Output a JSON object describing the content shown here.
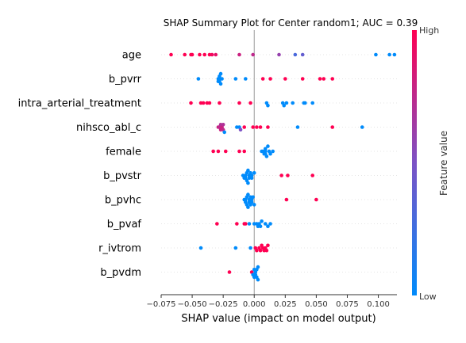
{
  "chart_data": {
    "type": "scatter",
    "subtype": "shap-beeswarm",
    "title": "SHAP Summary Plot for Center random1; AUC = 0.39",
    "xlabel": "SHAP value (impact on model output)",
    "ylabel": "",
    "xlim": [
      -0.075,
      0.115
    ],
    "xticks": [
      -0.075,
      -0.05,
      -0.025,
      0.0,
      0.025,
      0.05,
      0.075,
      0.1
    ],
    "xtick_labels": [
      "−0.075",
      "−0.050",
      "−0.025",
      "0.000",
      "0.025",
      "0.050",
      "0.075",
      "0.100"
    ],
    "grid": false,
    "zero_line": true,
    "colorbar": {
      "label": "Feature value",
      "high_label": "High",
      "low_label": "Low",
      "low_color": "#008bfb",
      "high_color": "#ff0052"
    },
    "series": [
      {
        "feature": "age",
        "points": [
          {
            "x": -0.067,
            "v": 1.0
          },
          {
            "x": -0.056,
            "v": 1.0
          },
          {
            "x": -0.051,
            "v": 1.0
          },
          {
            "x": -0.05,
            "v": 1.0
          },
          {
            "x": -0.044,
            "v": 1.0
          },
          {
            "x": -0.04,
            "v": 1.0
          },
          {
            "x": -0.036,
            "v": 1.0
          },
          {
            "x": -0.034,
            "v": 0.95
          },
          {
            "x": -0.031,
            "v": 0.9
          },
          {
            "x": -0.012,
            "v": 0.8
          },
          {
            "x": -0.001,
            "v": 0.75
          },
          {
            "x": 0.02,
            "v": 0.6
          },
          {
            "x": 0.033,
            "v": 0.3
          },
          {
            "x": 0.039,
            "v": 0.4
          },
          {
            "x": 0.098,
            "v": 0.0
          },
          {
            "x": 0.109,
            "v": 0.0
          },
          {
            "x": 0.113,
            "v": 0.0
          }
        ]
      },
      {
        "feature": "b_pvrr",
        "points": [
          {
            "x": -0.045,
            "v": 0.0
          },
          {
            "x": -0.029,
            "v": 0.0
          },
          {
            "x": -0.029,
            "v": 0.0
          },
          {
            "x": -0.028,
            "v": 0.0
          },
          {
            "x": -0.028,
            "v": 0.0
          },
          {
            "x": -0.028,
            "v": 0.0
          },
          {
            "x": -0.027,
            "v": 0.0
          },
          {
            "x": -0.027,
            "v": 0.0
          },
          {
            "x": -0.026,
            "v": 0.0
          },
          {
            "x": -0.015,
            "v": 0.0
          },
          {
            "x": -0.007,
            "v": 0.0
          },
          {
            "x": 0.007,
            "v": 1.0
          },
          {
            "x": 0.013,
            "v": 1.0
          },
          {
            "x": 0.025,
            "v": 1.0
          },
          {
            "x": 0.039,
            "v": 1.0
          },
          {
            "x": 0.053,
            "v": 1.0
          },
          {
            "x": 0.056,
            "v": 1.0
          },
          {
            "x": 0.063,
            "v": 1.0
          }
        ]
      },
      {
        "feature": "intra_arterial_treatment",
        "points": [
          {
            "x": -0.051,
            "v": 1.0
          },
          {
            "x": -0.043,
            "v": 1.0
          },
          {
            "x": -0.041,
            "v": 1.0
          },
          {
            "x": -0.038,
            "v": 1.0
          },
          {
            "x": -0.036,
            "v": 1.0
          },
          {
            "x": -0.028,
            "v": 1.0
          },
          {
            "x": -0.012,
            "v": 1.0
          },
          {
            "x": -0.003,
            "v": 1.0
          },
          {
            "x": 0.01,
            "v": 0.0
          },
          {
            "x": 0.011,
            "v": 0.0
          },
          {
            "x": 0.023,
            "v": 0.0
          },
          {
            "x": 0.024,
            "v": 0.0
          },
          {
            "x": 0.026,
            "v": 0.0
          },
          {
            "x": 0.031,
            "v": 0.0
          },
          {
            "x": 0.04,
            "v": 0.0
          },
          {
            "x": 0.041,
            "v": 0.0
          },
          {
            "x": 0.047,
            "v": 0.0
          }
        ]
      },
      {
        "feature": "nihsco_abl_c",
        "points": [
          {
            "x": -0.029,
            "v": 0.8
          },
          {
            "x": -0.028,
            "v": 0.75
          },
          {
            "x": -0.027,
            "v": 0.8
          },
          {
            "x": -0.027,
            "v": 0.7
          },
          {
            "x": -0.026,
            "v": 0.8
          },
          {
            "x": -0.025,
            "v": 0.75
          },
          {
            "x": -0.025,
            "v": 0.7
          },
          {
            "x": -0.024,
            "v": 0.0
          },
          {
            "x": -0.014,
            "v": 0.0
          },
          {
            "x": -0.012,
            "v": 0.0
          },
          {
            "x": -0.011,
            "v": 0.5
          },
          {
            "x": -0.008,
            "v": 1.0
          },
          {
            "x": -0.001,
            "v": 1.0
          },
          {
            "x": 0.002,
            "v": 1.0
          },
          {
            "x": 0.005,
            "v": 1.0
          },
          {
            "x": 0.011,
            "v": 1.0
          },
          {
            "x": 0.035,
            "v": 0.0
          },
          {
            "x": 0.063,
            "v": 1.0
          },
          {
            "x": 0.087,
            "v": 0.0
          }
        ]
      },
      {
        "feature": "female",
        "points": [
          {
            "x": -0.033,
            "v": 1.0
          },
          {
            "x": -0.029,
            "v": 1.0
          },
          {
            "x": -0.023,
            "v": 1.0
          },
          {
            "x": -0.012,
            "v": 1.0
          },
          {
            "x": -0.008,
            "v": 1.0
          },
          {
            "x": 0.006,
            "v": 0.0
          },
          {
            "x": 0.007,
            "v": 0.0
          },
          {
            "x": 0.008,
            "v": 0.0
          },
          {
            "x": 0.009,
            "v": 0.0
          },
          {
            "x": 0.009,
            "v": 0.0
          },
          {
            "x": 0.009,
            "v": 0.0
          },
          {
            "x": 0.01,
            "v": 0.0
          },
          {
            "x": 0.011,
            "v": 0.0
          },
          {
            "x": 0.012,
            "v": 0.0
          },
          {
            "x": 0.013,
            "v": 0.0
          },
          {
            "x": 0.015,
            "v": 0.0
          }
        ]
      },
      {
        "feature": "b_pvstr",
        "points": [
          {
            "x": -0.009,
            "v": 0.0
          },
          {
            "x": -0.008,
            "v": 0.0
          },
          {
            "x": -0.007,
            "v": 0.0
          },
          {
            "x": -0.007,
            "v": 0.0
          },
          {
            "x": -0.006,
            "v": 0.0
          },
          {
            "x": -0.006,
            "v": 0.0
          },
          {
            "x": -0.005,
            "v": 0.0
          },
          {
            "x": -0.005,
            "v": 0.0
          },
          {
            "x": -0.004,
            "v": 0.0
          },
          {
            "x": -0.004,
            "v": 0.0
          },
          {
            "x": -0.003,
            "v": 0.0
          },
          {
            "x": -0.002,
            "v": 0.0
          },
          {
            "x": -0.002,
            "v": 0.0
          },
          {
            "x": 0.0,
            "v": 0.0
          },
          {
            "x": 0.022,
            "v": 1.0
          },
          {
            "x": 0.027,
            "v": 1.0
          },
          {
            "x": 0.047,
            "v": 1.0
          }
        ]
      },
      {
        "feature": "b_pvhc",
        "points": [
          {
            "x": -0.008,
            "v": 0.0
          },
          {
            "x": -0.007,
            "v": 0.0
          },
          {
            "x": -0.007,
            "v": 0.0
          },
          {
            "x": -0.006,
            "v": 0.0
          },
          {
            "x": -0.006,
            "v": 0.0
          },
          {
            "x": -0.005,
            "v": 0.0
          },
          {
            "x": -0.005,
            "v": 0.0
          },
          {
            "x": -0.004,
            "v": 0.0
          },
          {
            "x": -0.004,
            "v": 0.0
          },
          {
            "x": -0.003,
            "v": 0.0
          },
          {
            "x": -0.003,
            "v": 0.0
          },
          {
            "x": -0.002,
            "v": 0.0
          },
          {
            "x": -0.002,
            "v": 0.0
          },
          {
            "x": -0.001,
            "v": 0.0
          },
          {
            "x": 0.0,
            "v": 0.0
          },
          {
            "x": 0.026,
            "v": 1.0
          },
          {
            "x": 0.05,
            "v": 1.0
          }
        ]
      },
      {
        "feature": "b_pvaf",
        "points": [
          {
            "x": -0.03,
            "v": 1.0
          },
          {
            "x": -0.014,
            "v": 1.0
          },
          {
            "x": -0.008,
            "v": 1.0
          },
          {
            "x": -0.007,
            "v": 1.0
          },
          {
            "x": -0.004,
            "v": 0.0
          },
          {
            "x": 0.0,
            "v": 0.0
          },
          {
            "x": 0.002,
            "v": 0.0
          },
          {
            "x": 0.003,
            "v": 0.0
          },
          {
            "x": 0.004,
            "v": 0.0
          },
          {
            "x": 0.005,
            "v": 0.0
          },
          {
            "x": 0.006,
            "v": 0.0
          },
          {
            "x": 0.009,
            "v": 0.0
          },
          {
            "x": 0.011,
            "v": 0.0
          },
          {
            "x": 0.013,
            "v": 0.0
          }
        ]
      },
      {
        "feature": "r_ivtrom",
        "points": [
          {
            "x": -0.043,
            "v": 0.0
          },
          {
            "x": -0.015,
            "v": 0.0
          },
          {
            "x": -0.003,
            "v": 0.0
          },
          {
            "x": 0.001,
            "v": 1.0
          },
          {
            "x": 0.002,
            "v": 1.0
          },
          {
            "x": 0.004,
            "v": 1.0
          },
          {
            "x": 0.005,
            "v": 1.0
          },
          {
            "x": 0.006,
            "v": 1.0
          },
          {
            "x": 0.007,
            "v": 1.0
          },
          {
            "x": 0.008,
            "v": 1.0
          },
          {
            "x": 0.009,
            "v": 1.0
          },
          {
            "x": 0.01,
            "v": 1.0
          },
          {
            "x": 0.011,
            "v": 1.0
          }
        ]
      },
      {
        "feature": "b_pvdm",
        "points": [
          {
            "x": -0.02,
            "v": 1.0
          },
          {
            "x": -0.002,
            "v": 1.0
          },
          {
            "x": -0.001,
            "v": 0.0
          },
          {
            "x": 0.0,
            "v": 0.0
          },
          {
            "x": 0.0,
            "v": 0.0
          },
          {
            "x": 0.001,
            "v": 0.0
          },
          {
            "x": 0.001,
            "v": 0.0
          },
          {
            "x": 0.002,
            "v": 0.0
          },
          {
            "x": 0.002,
            "v": 0.0
          },
          {
            "x": 0.003,
            "v": 0.0
          },
          {
            "x": 0.003,
            "v": 0.0
          }
        ]
      }
    ]
  }
}
